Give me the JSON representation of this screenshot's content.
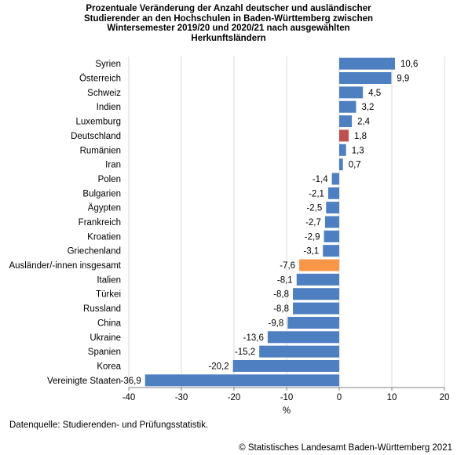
{
  "title_lines": [
    "Prozentuale Veränderung der Anzahl deutscher und ausländischer",
    "Studierender an den Hochschulen in Baden-Württemberg zwischen",
    "Wintersemester 2019/20 und 2020/21 nach ausgewählten",
    "Herkunftsländern"
  ],
  "source": "Datenquelle: Studierenden- und Prüfungsstatistik.",
  "copyright": "© Statistisches Landesamt Baden-Württemberg 2021",
  "colors": {
    "default": "#4e7fc1",
    "deutschland": "#c0504d",
    "insgesamt": "#f79646",
    "grid": "#d9d9d9",
    "axis": "#808080"
  },
  "chart_data": {
    "type": "bar",
    "orientation": "horizontal",
    "categories": [
      "Syrien",
      "Österreich",
      "Schweiz",
      "Indien",
      "Luxemburg",
      "Deutschland",
      "Rumänien",
      "Iran",
      "Polen",
      "Bulgarien",
      "Ägypten",
      "Frankreich",
      "Kroatien",
      "Griechenland",
      "Ausländer/-innen insgesamt",
      "Italien",
      "Türkei",
      "Russland",
      "China",
      "Ukraine",
      "Spanien",
      "Korea",
      "Vereinigte Staaten"
    ],
    "values": [
      10.6,
      9.9,
      4.5,
      3.2,
      2.4,
      1.8,
      1.3,
      0.7,
      -1.4,
      -2.1,
      -2.5,
      -2.7,
      -2.9,
      -3.1,
      -7.6,
      -8.1,
      -8.8,
      -8.8,
      -9.8,
      -13.6,
      -15.2,
      -20.2,
      -36.9
    ],
    "value_labels": [
      "10,6",
      "9,9",
      "4,5",
      "3,2",
      "2,4",
      "1,8",
      "1,3",
      "0,7",
      "-1,4",
      "-2,1",
      "-2,5",
      "-2,7",
      "-2,9",
      "-3,1",
      "-7,6",
      "-8,1",
      "-8,8",
      "-8,8",
      "-9,8",
      "-13,6",
      "-15,2",
      "-20,2",
      "-36,9"
    ],
    "highlight": {
      "Deutschland": "deutschland",
      "Ausländer/-innen insgesamt": "insgesamt"
    },
    "xlabel": "%",
    "xlim": [
      -40,
      20
    ],
    "xticks": [
      -40,
      -30,
      -20,
      -10,
      0,
      10,
      20
    ],
    "grid": true
  }
}
